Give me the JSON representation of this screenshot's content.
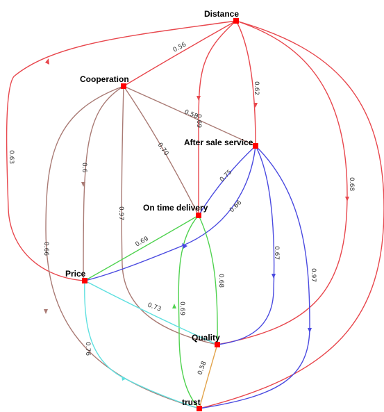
{
  "colors": {
    "red": "#e8474d",
    "brown": "#a97a74",
    "blue": "#4a4ae0",
    "green": "#4fd24f",
    "cyan": "#5fe0e0",
    "orange": "#e2a34a",
    "node": "#ff0000"
  },
  "nodes": {
    "distance": "Distance",
    "cooperation": "Cooperation",
    "after_sale": "After sale service",
    "on_time": "On time delivery",
    "price": "Price",
    "quality": "Quality",
    "trust": "trust"
  },
  "edges": {
    "dist_coop": "0.56",
    "dist_ontime": "0.69",
    "dist_after": "0.62",
    "dist_price": "0.63",
    "dist_quality": "0.68",
    "coop_after": "0.58",
    "coop_ontime": "0.70",
    "coop_price": "0.6",
    "coop_quality": "0.97",
    "coop_trust": "0.66",
    "after_ontime": "0.75",
    "after_price": "0.66",
    "after_quality": "0.67",
    "after_trust": "0.97",
    "ontime_price": "0.69",
    "ontime_quality": "0.68",
    "ontime_trust": "0.69",
    "price_quality": "0.73",
    "price_trust": "0.76",
    "quality_trust": "0.58"
  }
}
